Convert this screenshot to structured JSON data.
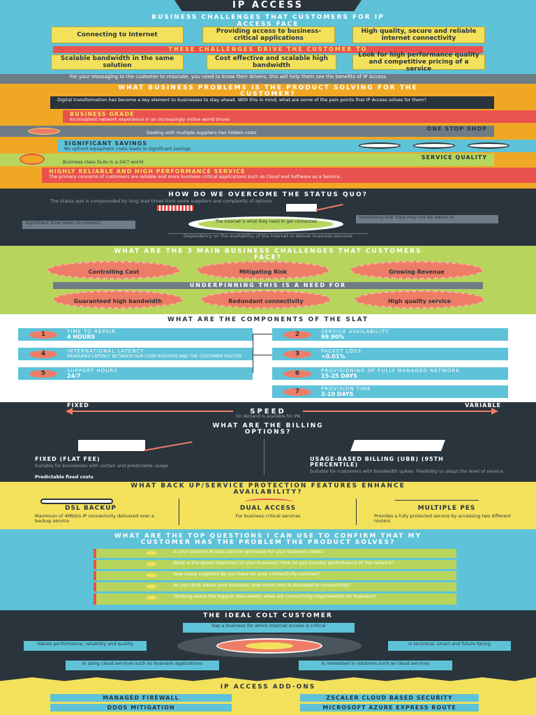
{
  "title": "IP ACCESS",
  "challenges": {
    "heading": "BUSINESS CHALLENGES THAT CUSTOMERS FOR IP ACCESS FACE",
    "boxes": [
      "Connecting to Internet",
      "Providing access to business-critical applications",
      "High quality, secure and reliable internet connectivity",
      "Scalable bandwidth in the same solution",
      "Cost effective and scalable high bandwidth",
      "Look for high performance quality and competitive pricing of a service"
    ],
    "drive": "THESE CHALLENGES DRIVE THE CUSTOMER TO",
    "intro": "For your messaging to the customer to resonate, you need to know their drivers, this will help them see the benefits of IP Access."
  },
  "problems": {
    "heading": "WHAT BUSINESS PROBLEMS IS THE PRODUCT SOLVING FOR THE CUSTOMER?",
    "subtext": "Digital transformation has become a key element to businesses to stay ahead. With this in mind, what are some of the pain points that IP Access solves for them?",
    "business_grade_title": "BUSINESS GRADE",
    "business_grade_text": "Inconsistent network experience in an increasingly online world drives",
    "one_stop_title": "ONE STOP SHOP",
    "one_stop_text": "Dealing with multiple suppliers has hidden costs",
    "savings_title": "SIGNIFICANT SAVINGS",
    "savings_text": "No upfront equipment costs leads to significant savings",
    "service_title": "SERVICE QUALITY",
    "service_text": "Business class SLAs in a 24/7 world",
    "reliable_title": "HIGHLY RELIABLE AND HIGH PERFORMANCE SERVICE",
    "reliable_text": "The primary concerns of customers are reliable and more business critical applications such as Cloud and Software as a Service."
  },
  "overcome": {
    "heading": "HOW DO WE OVERCOME THE STATUS QUO?",
    "intro": "The status quo is compounded by long lead times from some suppliers and complexity of options.",
    "left_label": "Significant time taken to connect",
    "right_label": "Something that they may not be aware of",
    "center_label": "The internet is what they need to get connected",
    "bottom_label": "Dependency on the availability of the internet to deliver business services"
  },
  "main_challenges": {
    "heading": "WHAT ARE THE 3 MAIN BUSINESS CHALLENGES THAT CUSTOMERS FACE?",
    "items": [
      "Controlling Cost",
      "Mitigating Risk",
      "Growing Revenue"
    ],
    "underpin": "UNDERPINNING THIS IS A NEED FOR",
    "needs": [
      "Guaranteed high bandwidth",
      "Redundant connectivity",
      "High quality service"
    ]
  },
  "slat": {
    "heading": "WHAT ARE THE COMPONENTS OF THE SLAT",
    "left": [
      {
        "n": "1",
        "label": "TIME TO REPAIR",
        "value": "4 HOURS"
      },
      {
        "n": "4",
        "label": "INTERNATIONAL LATENCY",
        "value": "MEASURED LATENCY BETWEEN OUR CORE ROUTERS AND THE CUSTOMER ROUTER"
      },
      {
        "n": "5",
        "label": "SUPPORT HOURS",
        "value": "24/7"
      }
    ],
    "right": [
      {
        "n": "2",
        "label": "SERVICE AVAILABILITY",
        "value": "99.90%"
      },
      {
        "n": "3",
        "label": "PACKET LOSS",
        "value": "<0.01%"
      },
      {
        "n": "6",
        "label": "PROVISIONING OF FULLY MANAGED NETWORK",
        "value": "15-25 DAYS"
      },
      {
        "n": "7",
        "label": "PROVISION TIME",
        "value": "2-10 DAYS"
      }
    ]
  },
  "speed": {
    "fixed": "FIXED",
    "variable": "VARIABLE",
    "label": "SPEED",
    "sub": "On demand is available for IPA"
  },
  "billing": {
    "heading": "WHAT ARE THE BILLING OPTIONS?",
    "left_title": "FIXED (FLAT FEE)",
    "left_text": "Suitable for businesses with certain and predictable usage",
    "left_foot": "Predictable fixed costs",
    "right_title": "USAGE-BASED BILLING (UBB) (95TH PERCENTILE)",
    "right_text": "Suitable for customers with bandwidth spikes. Flexibility to adapt the level of service."
  },
  "backup": {
    "heading": "WHAT BACK UP/SERVICE PROTECTION FEATURES ENHANCE AVAILABILITY?",
    "items": [
      {
        "title": "DSL BACKUP",
        "text": "Maximum of 4Mbit/s IP connectivity delivered over a backup service"
      },
      {
        "title": "DUAL ACCESS",
        "text": "For business critical services"
      },
      {
        "title": "MULTIPLE PEs",
        "text": "Provides a fully protected service by accessing two different routers"
      }
    ]
  },
  "questions": {
    "heading": "WHAT ARE THE TOP QUESTIONS I CAN USE TO CONFIRM THAT MY CUSTOMER HAS THE PROBLEM THE PRODUCT SOLVES?",
    "items": [
      "Is your Internet Access service optimised for your business needs?",
      "What is the speed important to your business? How do you monitor performance of the network?",
      "How many suppliers do you have for your connectivity services?",
      "As you think about your business, how much cost is allocated to connectivity?",
      "Thinking about the biggest data needs, what are connectivity requirements for business?"
    ]
  },
  "ideal": {
    "heading": "THE IDEAL COLT CUSTOMER",
    "top": "Has a business for which internet access is critical",
    "left1": "Values performance, reliability and quality",
    "right1": "Is technical, smart and future facing",
    "left2": "Is using cloud services such as business applications",
    "right2": "Is interested in solutions such as cloud services"
  },
  "addons": {
    "heading": "IP ACCESS ADD-ONS",
    "items": [
      "MANAGED FIREWALL",
      "ZSCALER CLOUD BASED SECURITY",
      "DDOS MITIGATION",
      "MICROSOFT AZURE EXPRESS ROUTE"
    ]
  },
  "colors": {
    "navy": "#2a343c",
    "blue": "#5ec2d8",
    "yellow": "#f3e15c",
    "orange": "#f0a824",
    "red": "#e9524e",
    "green": "#b7d55c",
    "salmon": "#ee7d67"
  }
}
